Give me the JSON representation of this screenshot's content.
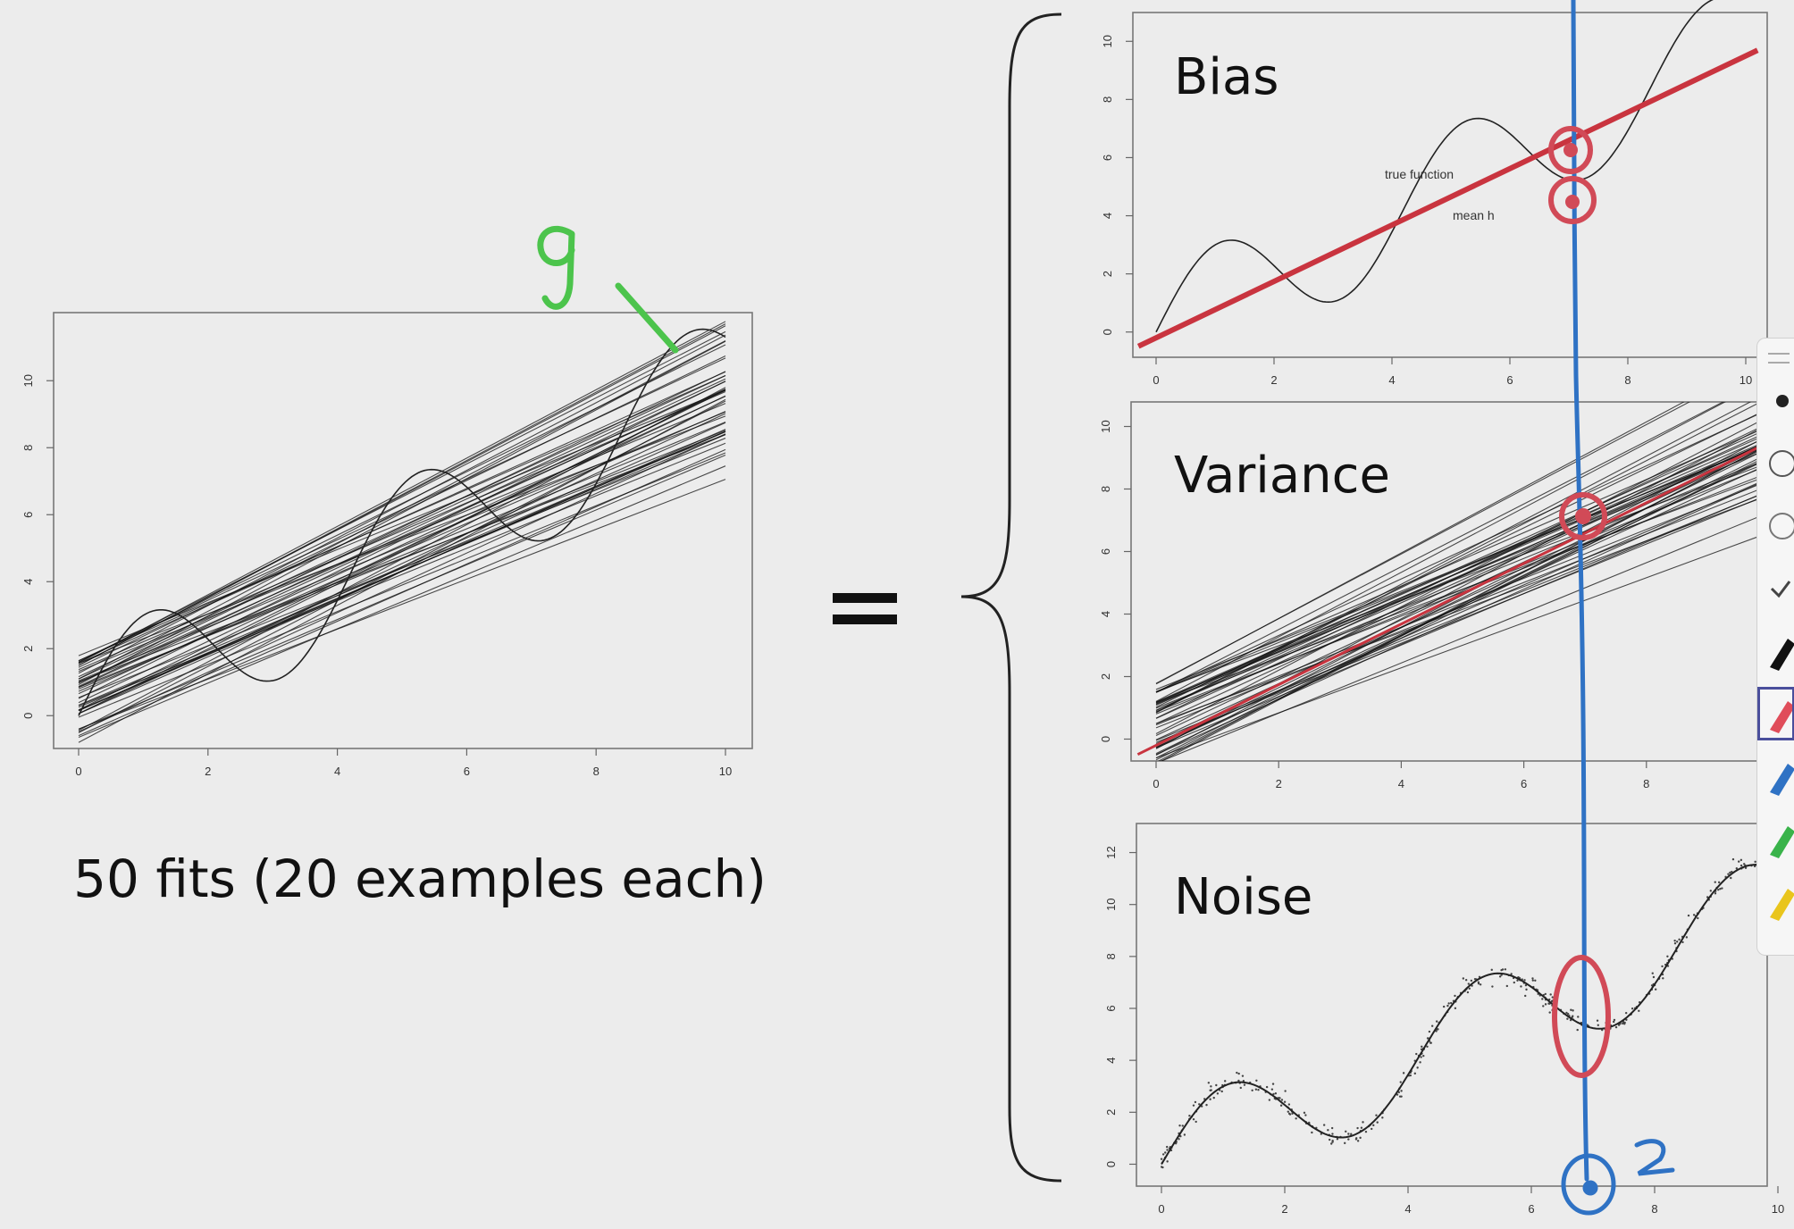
{
  "caption": "50 fits (20 examples each)",
  "equals_sign": "=",
  "panels": {
    "bias": {
      "title": "Bias"
    },
    "variance": {
      "title": "Variance"
    },
    "noise": {
      "title": "Noise"
    }
  },
  "annotations": {
    "g_label": "g",
    "z_label": "z",
    "true_function_label": "true function",
    "mean_h_label": "mean h"
  },
  "colors": {
    "background": "#ececec",
    "red_ink": "#d14a57",
    "blue_ink": "#2f72c4",
    "green_ink": "#4cc44c",
    "mean_line": "#c9343f"
  },
  "toolbar": {
    "tools": [
      "dot-icon",
      "lasso-icon",
      "eraser-icon",
      "check-icon",
      "black-pen-icon",
      "red-pen-icon",
      "blue-pen-icon",
      "green-pen-icon",
      "yellow-highlighter-icon"
    ],
    "active_tool": "red-pen-icon"
  },
  "chart_data": [
    {
      "type": "line",
      "description_series": "50 linear fits plus true function",
      "x_ticks": [
        "0",
        "2",
        "4",
        "6",
        "8",
        "10"
      ],
      "y_ticks": [
        "0",
        "2",
        "4",
        "6",
        "8",
        "10"
      ],
      "xlim": [
        0,
        10
      ],
      "ylim": [
        -0.5,
        11.5
      ],
      "series": [
        {
          "kind": "true_function",
          "intercept": 0,
          "slope": 1
        },
        {
          "kind": "fits",
          "count": 50,
          "intercept_range": [
            -0.8,
            1.8
          ],
          "slope_range": [
            0.72,
            1.05
          ]
        }
      ]
    },
    {
      "type": "line",
      "title": "Bias",
      "x_ticks": [
        "0",
        "2",
        "4",
        "6",
        "8",
        "10"
      ],
      "y_ticks": [
        "0",
        "2",
        "4",
        "6",
        "8",
        "10"
      ],
      "xlim": [
        0,
        10
      ],
      "ylim": [
        -0.5,
        10.5
      ],
      "series": [
        {
          "name": "true function",
          "kind": "true_function"
        },
        {
          "name": "mean h",
          "kind": "mean_line",
          "intercept": -0.2,
          "slope": 0.97
        }
      ]
    },
    {
      "type": "line",
      "title": "Variance",
      "x_ticks": [
        "0",
        "2",
        "4",
        "6",
        "8"
      ],
      "y_ticks": [
        "0",
        "2",
        "4",
        "6",
        "8",
        "10"
      ],
      "xlim": [
        0,
        10
      ],
      "ylim": [
        -0.3,
        10.5
      ],
      "series": [
        {
          "kind": "fits",
          "count": 50,
          "intercept_range": [
            -0.8,
            1.8
          ],
          "slope_range": [
            0.72,
            1.05
          ]
        },
        {
          "kind": "mean_line",
          "intercept": -0.2,
          "slope": 0.97
        }
      ]
    },
    {
      "type": "scatter",
      "title": "Noise",
      "x_ticks": [
        "0",
        "2",
        "4",
        "6",
        "8",
        "10"
      ],
      "y_ticks": [
        "0",
        "2",
        "4",
        "6",
        "8",
        "10",
        "12"
      ],
      "xlim": [
        0,
        10
      ],
      "ylim": [
        -0.5,
        12.5
      ],
      "series": [
        {
          "kind": "true_function"
        },
        {
          "kind": "noisy_samples",
          "count": 400,
          "noise_sd": 0.18
        }
      ]
    }
  ]
}
